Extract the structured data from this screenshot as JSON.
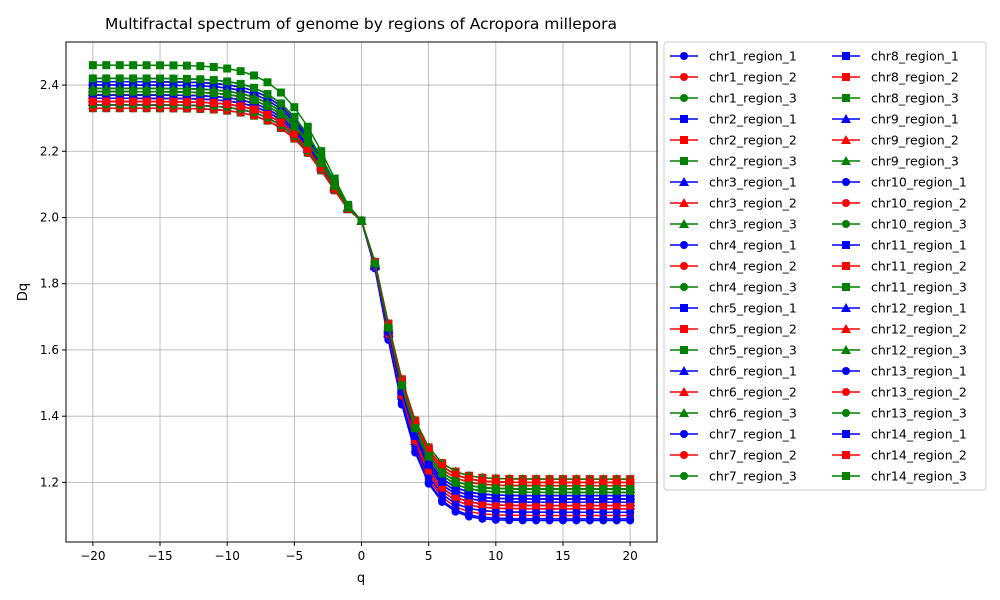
{
  "chart_data": {
    "type": "line",
    "title": "Multifractal spectrum of genome by regions of Acropora millepora",
    "xlabel": "q",
    "ylabel": "Dq",
    "xlim": [
      -22,
      22
    ],
    "ylim": [
      1.02,
      2.53
    ],
    "xticks": [
      -20,
      -15,
      -10,
      -5,
      0,
      5,
      10,
      15,
      20
    ],
    "yticks": [
      1.2,
      1.4,
      1.6,
      1.8,
      2.0,
      2.2,
      2.4
    ],
    "xtick_labels": [
      "−20",
      "−15",
      "−10",
      "−5",
      "0",
      "5",
      "10",
      "15",
      "20"
    ],
    "ytick_labels": [
      "1.2",
      "1.4",
      "1.6",
      "1.8",
      "2.0",
      "2.2",
      "2.4"
    ],
    "grid": true,
    "legend": {
      "placement": "outside-right",
      "columns": 2
    },
    "colors": {
      "region_1": "#0000ff",
      "region_2": "#ff0000",
      "region_3": "#008000"
    },
    "markers_by_chromosome": {
      "chr1": "circle",
      "chr2": "square",
      "chr3": "triangle",
      "chr4": "circle",
      "chr5": "square",
      "chr6": "triangle",
      "chr7": "circle",
      "chr8": "square",
      "chr9": "triangle",
      "chr10": "circle",
      "chr11": "square",
      "chr12": "triangle",
      "chr13": "circle",
      "chr14": "square"
    },
    "x": [
      -20,
      -19,
      -18,
      -17,
      -16,
      -15,
      -14,
      -13,
      -12,
      -11,
      -10,
      -9,
      -8,
      -7,
      -6,
      -5,
      -4,
      -3,
      -2,
      -1,
      0,
      1,
      2,
      3,
      4,
      5,
      6,
      7,
      8,
      9,
      10,
      11,
      12,
      13,
      14,
      15,
      16,
      17,
      18,
      19,
      20
    ],
    "series": [
      {
        "name": "chr1_region_1",
        "color": "#0000ff",
        "marker": "circle",
        "Dmin": 2.42,
        "D0": 1.99,
        "Dmax": 1.085
      },
      {
        "name": "chr1_region_2",
        "color": "#ff0000",
        "marker": "circle",
        "Dmin": 2.36,
        "D0": 1.99,
        "Dmax": 1.1
      },
      {
        "name": "chr1_region_3",
        "color": "#008000",
        "marker": "circle",
        "Dmin": 2.38,
        "D0": 1.99,
        "Dmax": 1.17
      },
      {
        "name": "chr2_region_1",
        "color": "#0000ff",
        "marker": "square",
        "Dmin": 2.35,
        "D0": 1.99,
        "Dmax": 1.14
      },
      {
        "name": "chr2_region_2",
        "color": "#ff0000",
        "marker": "square",
        "Dmin": 2.37,
        "D0": 1.99,
        "Dmax": 1.21
      },
      {
        "name": "chr2_region_3",
        "color": "#008000",
        "marker": "square",
        "Dmin": 2.41,
        "D0": 1.99,
        "Dmax": 1.18
      },
      {
        "name": "chr3_region_1",
        "color": "#0000ff",
        "marker": "triangle",
        "Dmin": 2.36,
        "D0": 1.99,
        "Dmax": 1.13
      },
      {
        "name": "chr3_region_2",
        "color": "#ff0000",
        "marker": "triangle",
        "Dmin": 2.4,
        "D0": 1.99,
        "Dmax": 1.16
      },
      {
        "name": "chr3_region_3",
        "color": "#008000",
        "marker": "triangle",
        "Dmin": 2.38,
        "D0": 1.99,
        "Dmax": 1.19
      },
      {
        "name": "chr4_region_1",
        "color": "#0000ff",
        "marker": "circle",
        "Dmin": 2.34,
        "D0": 1.99,
        "Dmax": 1.12
      },
      {
        "name": "chr4_region_2",
        "color": "#ff0000",
        "marker": "circle",
        "Dmin": 2.39,
        "D0": 1.99,
        "Dmax": 1.15
      },
      {
        "name": "chr4_region_3",
        "color": "#008000",
        "marker": "circle",
        "Dmin": 2.4,
        "D0": 1.99,
        "Dmax": 1.2
      },
      {
        "name": "chr5_region_1",
        "color": "#0000ff",
        "marker": "square",
        "Dmin": 2.37,
        "D0": 1.99,
        "Dmax": 1.15
      },
      {
        "name": "chr5_region_2",
        "color": "#ff0000",
        "marker": "square",
        "Dmin": 2.35,
        "D0": 1.99,
        "Dmax": 1.2
      },
      {
        "name": "chr5_region_3",
        "color": "#008000",
        "marker": "square",
        "Dmin": 2.33,
        "D0": 1.99,
        "Dmax": 1.18
      },
      {
        "name": "chr6_region_1",
        "color": "#0000ff",
        "marker": "triangle",
        "Dmin": 2.39,
        "D0": 1.99,
        "Dmax": 1.16
      },
      {
        "name": "chr6_region_2",
        "color": "#ff0000",
        "marker": "triangle",
        "Dmin": 2.41,
        "D0": 1.99,
        "Dmax": 1.17
      },
      {
        "name": "chr6_region_3",
        "color": "#008000",
        "marker": "triangle",
        "Dmin": 2.37,
        "D0": 1.99,
        "Dmax": 1.21
      },
      {
        "name": "chr7_region_1",
        "color": "#0000ff",
        "marker": "circle",
        "Dmin": 2.33,
        "D0": 1.99,
        "Dmax": 1.13
      },
      {
        "name": "chr7_region_2",
        "color": "#ff0000",
        "marker": "circle",
        "Dmin": 2.34,
        "D0": 1.99,
        "Dmax": 1.11
      },
      {
        "name": "chr7_region_3",
        "color": "#008000",
        "marker": "circle",
        "Dmin": 2.39,
        "D0": 1.99,
        "Dmax": 1.19
      },
      {
        "name": "chr8_region_1",
        "color": "#0000ff",
        "marker": "square",
        "Dmin": 2.4,
        "D0": 1.99,
        "Dmax": 1.15
      },
      {
        "name": "chr8_region_2",
        "color": "#ff0000",
        "marker": "square",
        "Dmin": 2.36,
        "D0": 1.99,
        "Dmax": 1.2
      },
      {
        "name": "chr8_region_3",
        "color": "#008000",
        "marker": "square",
        "Dmin": 2.46,
        "D0": 1.99,
        "Dmax": 1.19
      },
      {
        "name": "chr9_region_1",
        "color": "#0000ff",
        "marker": "triangle",
        "Dmin": 2.38,
        "D0": 1.99,
        "Dmax": 1.14
      },
      {
        "name": "chr9_region_2",
        "color": "#ff0000",
        "marker": "triangle",
        "Dmin": 2.37,
        "D0": 1.99,
        "Dmax": 1.18
      },
      {
        "name": "chr9_region_3",
        "color": "#008000",
        "marker": "triangle",
        "Dmin": 2.35,
        "D0": 1.99,
        "Dmax": 1.17
      },
      {
        "name": "chr10_region_1",
        "color": "#0000ff",
        "marker": "circle",
        "Dmin": 2.41,
        "D0": 1.99,
        "Dmax": 1.09
      },
      {
        "name": "chr10_region_2",
        "color": "#ff0000",
        "marker": "circle",
        "Dmin": 2.35,
        "D0": 1.99,
        "Dmax": 1.12
      },
      {
        "name": "chr10_region_3",
        "color": "#008000",
        "marker": "circle",
        "Dmin": 2.36,
        "D0": 1.99,
        "Dmax": 1.18
      },
      {
        "name": "chr11_region_1",
        "color": "#0000ff",
        "marker": "square",
        "Dmin": 2.34,
        "D0": 1.99,
        "Dmax": 1.16
      },
      {
        "name": "chr11_region_2",
        "color": "#ff0000",
        "marker": "square",
        "Dmin": 2.38,
        "D0": 1.99,
        "Dmax": 1.19
      },
      {
        "name": "chr11_region_3",
        "color": "#008000",
        "marker": "square",
        "Dmin": 2.42,
        "D0": 1.99,
        "Dmax": 1.2
      },
      {
        "name": "chr12_region_1",
        "color": "#0000ff",
        "marker": "triangle",
        "Dmin": 2.35,
        "D0": 1.99,
        "Dmax": 1.14
      },
      {
        "name": "chr12_region_2",
        "color": "#ff0000",
        "marker": "triangle",
        "Dmin": 2.36,
        "D0": 1.99,
        "Dmax": 1.15
      },
      {
        "name": "chr12_region_3",
        "color": "#008000",
        "marker": "triangle",
        "Dmin": 2.39,
        "D0": 1.99,
        "Dmax": 1.18
      },
      {
        "name": "chr13_region_1",
        "color": "#0000ff",
        "marker": "circle",
        "Dmin": 2.37,
        "D0": 1.99,
        "Dmax": 1.11
      },
      {
        "name": "chr13_region_2",
        "color": "#ff0000",
        "marker": "circle",
        "Dmin": 2.33,
        "D0": 1.99,
        "Dmax": 1.13
      },
      {
        "name": "chr13_region_3",
        "color": "#008000",
        "marker": "circle",
        "Dmin": 2.34,
        "D0": 1.99,
        "Dmax": 1.17
      },
      {
        "name": "chr14_region_1",
        "color": "#0000ff",
        "marker": "square",
        "Dmin": 2.36,
        "D0": 1.99,
        "Dmax": 1.15
      },
      {
        "name": "chr14_region_2",
        "color": "#ff0000",
        "marker": "square",
        "Dmin": 2.35,
        "D0": 1.99,
        "Dmax": 1.2
      },
      {
        "name": "chr14_region_3",
        "color": "#008000",
        "marker": "square",
        "Dmin": 2.38,
        "D0": 1.99,
        "Dmax": 1.18
      }
    ]
  }
}
